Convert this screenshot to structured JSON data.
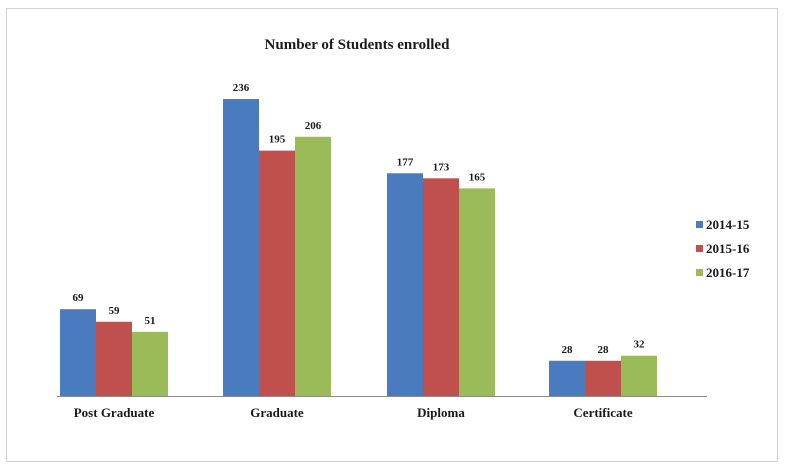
{
  "chart_data": {
    "type": "bar",
    "title": "Number of Students enrolled",
    "categories": [
      "Post Graduate",
      "Graduate",
      "Diploma",
      "Certificate"
    ],
    "series": [
      {
        "name": "2014-15",
        "color": "#4a7bbf",
        "values": [
          69,
          236,
          177,
          28
        ]
      },
      {
        "name": "2015-16",
        "color": "#c0504d",
        "values": [
          59,
          195,
          173,
          28
        ]
      },
      {
        "name": "2016-17",
        "color": "#9bbb59",
        "values": [
          51,
          206,
          165,
          32
        ]
      }
    ],
    "xlabel": "",
    "ylabel": "",
    "ylim": [
      0,
      240
    ],
    "grid": false,
    "legend": "right",
    "data_labels": true
  }
}
